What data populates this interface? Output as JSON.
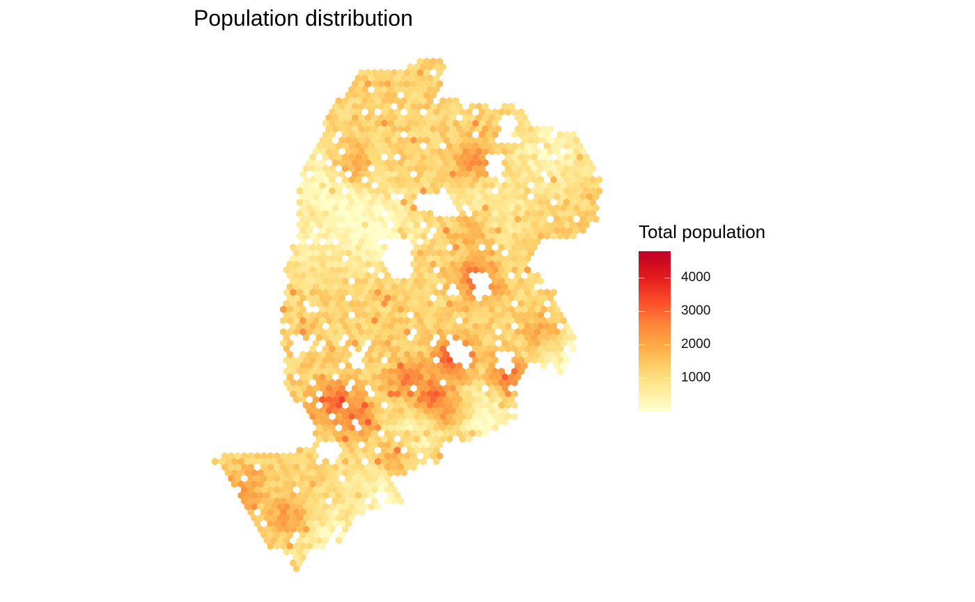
{
  "title": "Population distribution",
  "legend": {
    "title": "Total population",
    "min": 0,
    "max": 4800,
    "ticks": [
      {
        "value": 4000,
        "label": "4000"
      },
      {
        "value": 3000,
        "label": "3000"
      },
      {
        "value": 2000,
        "label": "2000"
      },
      {
        "value": 1000,
        "label": "1000"
      }
    ]
  },
  "colors": {
    "scale": [
      "#FFFFCC",
      "#FFEDA0",
      "#FED976",
      "#FEB24C",
      "#FD8D3C",
      "#FC4E2A",
      "#E31A1C",
      "#BD0026"
    ]
  },
  "map": {
    "type": "hexbin",
    "fill_variable": "Total population"
  }
}
